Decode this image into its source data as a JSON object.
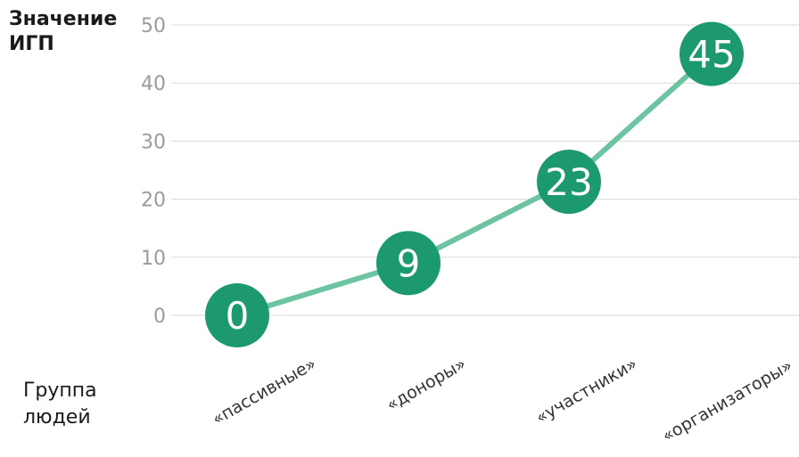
{
  "chart_data": {
    "type": "line",
    "ylabel": "Значение\nИГП",
    "xlabel": "Группа\nлюдей",
    "categories": [
      "«пассивные»",
      "«доноры»",
      "«участники»",
      "«организаторы»"
    ],
    "values": [
      0,
      9,
      23,
      45
    ],
    "data_labels": [
      "0",
      "9",
      "23",
      "45"
    ],
    "yticks": [
      0,
      10,
      20,
      30,
      40,
      50
    ],
    "ylim": [
      0,
      50
    ],
    "grid": true,
    "colors": {
      "line": "#6cc4a1",
      "marker": "#1d9970",
      "marker_text": "#ffffff",
      "grid": "#d9d9d9",
      "tick_text": "#9b9b9b",
      "category_text": "#333333"
    }
  }
}
